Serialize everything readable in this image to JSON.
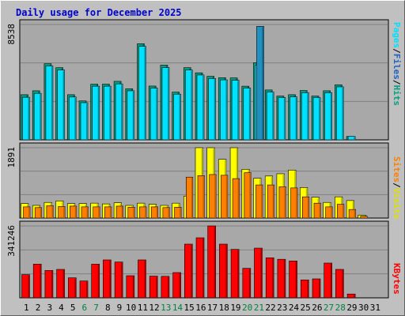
{
  "title": "Daily usage for December 2025",
  "colors": {
    "background": "#c0c0c0",
    "plot_bg": "#a8a8a8",
    "title": "#0000cc",
    "hits": "#00a080",
    "files": "#00e0ff",
    "pages": "#2090c0",
    "visits": "#ffff00",
    "sites": "#ff8000",
    "kbytes": "#ff0000",
    "weekend_day": "#008040",
    "weekday": "#000000"
  },
  "chart_data": [
    {
      "type": "bar",
      "panel": "hits-files-pages",
      "ymax_label": "8538",
      "ylim": [
        0,
        8538
      ],
      "legend": {
        "pages": "Pages",
        "sep1": "/",
        "files": "Files",
        "sep2": "/",
        "hits": "Hits"
      },
      "categories": [
        "1",
        "2",
        "3",
        "4",
        "5",
        "6",
        "7",
        "8",
        "9",
        "10",
        "11",
        "12",
        "13",
        "14",
        "15",
        "16",
        "17",
        "18",
        "19",
        "20",
        "21",
        "22",
        "23",
        "24",
        "25",
        "26",
        "27",
        "28",
        "29",
        "30",
        "31"
      ],
      "series": [
        {
          "name": "Hits",
          "values": [
            3340,
            3630,
            5630,
            5340,
            3340,
            2880,
            4120,
            4120,
            4330,
            3780,
            7110,
            3980,
            5530,
            3530,
            5340,
            4960,
            4700,
            4600,
            4580,
            3970,
            5710,
            3690,
            3240,
            3340,
            3650,
            3240,
            3630,
            4070,
            250,
            0,
            0
          ]
        },
        {
          "name": "Files",
          "values": [
            3150,
            3440,
            5470,
            5170,
            3170,
            2750,
            3970,
            3970,
            4140,
            3630,
            6920,
            3830,
            5350,
            3380,
            5170,
            4800,
            4540,
            4440,
            4410,
            3830,
            5530,
            3540,
            3130,
            3180,
            3490,
            3130,
            3490,
            3920,
            250,
            0,
            0
          ]
        },
        {
          "name": "Pages",
          "values": [
            0,
            0,
            0,
            0,
            0,
            0,
            0,
            0,
            0,
            0,
            0,
            0,
            0,
            0,
            0,
            0,
            0,
            0,
            0,
            0,
            8400,
            0,
            0,
            0,
            0,
            0,
            0,
            0,
            0,
            0,
            0
          ]
        }
      ]
    },
    {
      "type": "bar",
      "panel": "visits-sites",
      "ymax_label": "1891",
      "ylim": [
        0,
        1891
      ],
      "legend": {
        "sites": "Sites",
        "sep": "/",
        "visits": "Visits"
      },
      "series": [
        {
          "name": "Visits",
          "values": [
            390,
            340,
            420,
            460,
            390,
            390,
            400,
            380,
            410,
            340,
            400,
            370,
            340,
            400,
            590,
            1891,
            1891,
            1580,
            1891,
            1310,
            1070,
            1130,
            1191,
            1290,
            820,
            560,
            420,
            570,
            470,
            80,
            0
          ]
        },
        {
          "name": "Sites",
          "values": [
            300,
            280,
            330,
            310,
            320,
            300,
            300,
            300,
            320,
            290,
            300,
            300,
            280,
            290,
            1100,
            1140,
            1170,
            1150,
            1060,
            1220,
            890,
            890,
            840,
            810,
            570,
            400,
            300,
            370,
            230,
            50,
            0
          ]
        }
      ]
    },
    {
      "type": "bar",
      "panel": "kbytes",
      "ymax_label": "341246",
      "ylim": [
        0,
        341246
      ],
      "legend": {
        "kbytes": "KBytes"
      },
      "series": [
        {
          "name": "KBytes",
          "values": [
            110000,
            160000,
            130000,
            135000,
            95000,
            80000,
            160000,
            180000,
            170000,
            105000,
            180000,
            103000,
            102000,
            120000,
            255000,
            285000,
            341246,
            255000,
            230000,
            140000,
            236000,
            190000,
            183000,
            175000,
            85000,
            90000,
            165000,
            135000,
            18000,
            0,
            0
          ]
        }
      ]
    }
  ],
  "x_labels": [
    {
      "d": "1",
      "weekend": false
    },
    {
      "d": "2",
      "weekend": false
    },
    {
      "d": "3",
      "weekend": false
    },
    {
      "d": "4",
      "weekend": false
    },
    {
      "d": "5",
      "weekend": false
    },
    {
      "d": "6",
      "weekend": true
    },
    {
      "d": "7",
      "weekend": true
    },
    {
      "d": "8",
      "weekend": false
    },
    {
      "d": "9",
      "weekend": false
    },
    {
      "d": "10",
      "weekend": false
    },
    {
      "d": "11",
      "weekend": false
    },
    {
      "d": "12",
      "weekend": false
    },
    {
      "d": "13",
      "weekend": true
    },
    {
      "d": "14",
      "weekend": true
    },
    {
      "d": "15",
      "weekend": false
    },
    {
      "d": "16",
      "weekend": false
    },
    {
      "d": "17",
      "weekend": false
    },
    {
      "d": "18",
      "weekend": false
    },
    {
      "d": "19",
      "weekend": false
    },
    {
      "d": "20",
      "weekend": true
    },
    {
      "d": "21",
      "weekend": true
    },
    {
      "d": "22",
      "weekend": false
    },
    {
      "d": "23",
      "weekend": false
    },
    {
      "d": "24",
      "weekend": false
    },
    {
      "d": "25",
      "weekend": false
    },
    {
      "d": "26",
      "weekend": false
    },
    {
      "d": "27",
      "weekend": true
    },
    {
      "d": "28",
      "weekend": true
    },
    {
      "d": "29",
      "weekend": false
    },
    {
      "d": "30",
      "weekend": false
    },
    {
      "d": "31",
      "weekend": false
    }
  ]
}
